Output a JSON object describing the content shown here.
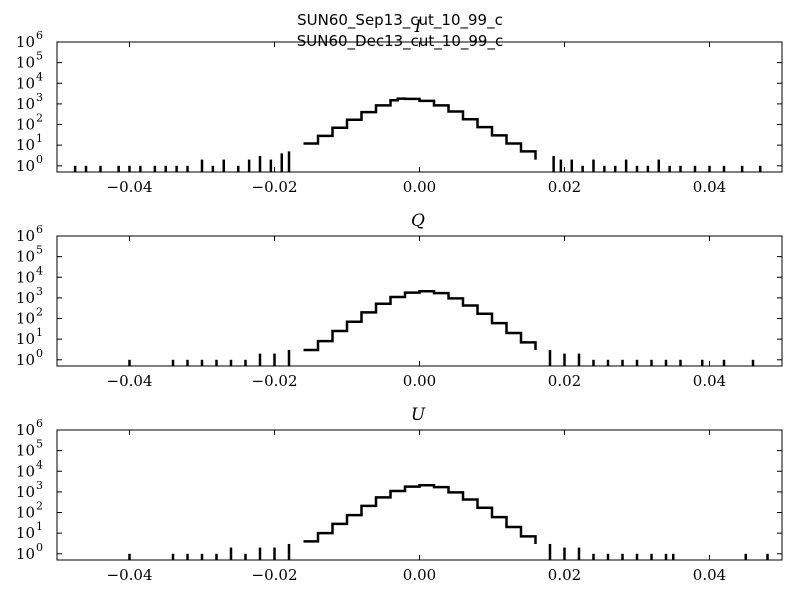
{
  "figure": {
    "title_lines": [
      "SUN60_Sep13_cut_10_99_c",
      "SUN60_Dec13_cut_10_99_c"
    ]
  },
  "chart_data": [
    {
      "type": "line",
      "title": "I",
      "xlabel": "",
      "ylabel": "",
      "xlim": [
        -0.05,
        0.05
      ],
      "ylim": [
        0.5,
        1000000
      ],
      "yscale": "log",
      "grid": false,
      "x_ticks": [
        -0.04,
        -0.02,
        0.0,
        0.02,
        0.04
      ],
      "x_tick_labels": [
        "−0.04",
        "−0.02",
        "0.00",
        "0.02",
        "0.04"
      ],
      "y_ticks": [
        1,
        10,
        100,
        1000,
        10000,
        100000,
        1000000
      ],
      "y_tick_labels": [
        {
          "base": "10",
          "exp": "0"
        },
        {
          "base": "10",
          "exp": "1"
        },
        {
          "base": "10",
          "exp": "2"
        },
        {
          "base": "10",
          "exp": "3"
        },
        {
          "base": "10",
          "exp": "4"
        },
        {
          "base": "10",
          "exp": "5"
        },
        {
          "base": "10",
          "exp": "6"
        }
      ],
      "series": [
        {
          "style": "step",
          "x": [
            -0.016,
            -0.014,
            -0.012,
            -0.01,
            -0.008,
            -0.006,
            -0.004,
            -0.003,
            -0.002,
            0.0,
            0.002,
            0.004,
            0.006,
            0.008,
            0.01,
            0.012,
            0.014,
            0.016
          ],
          "y": [
            12,
            28,
            70,
            170,
            400,
            850,
            1500,
            1800,
            1750,
            1400,
            850,
            430,
            180,
            75,
            30,
            12,
            5,
            2
          ],
          "sparse_tail_x": [
            -0.0475,
            -0.046,
            -0.044,
            -0.0415,
            -0.04,
            -0.0385,
            -0.0365,
            -0.035,
            -0.0335,
            -0.032,
            -0.03,
            -0.0285,
            -0.027,
            -0.025,
            -0.0235,
            -0.022,
            -0.0205,
            -0.019,
            -0.018,
            0.0185,
            0.0195,
            0.021,
            0.0225,
            0.024,
            0.0255,
            0.027,
            0.0285,
            0.03,
            0.0315,
            0.033,
            0.0345,
            0.036,
            0.038,
            0.04,
            0.042,
            0.0445,
            0.047
          ],
          "sparse_tail_y": [
            1,
            1,
            1,
            1,
            1,
            1,
            1,
            1,
            1,
            1,
            2,
            1,
            2,
            1,
            2,
            3,
            2,
            4,
            5,
            3,
            2,
            2,
            1,
            2,
            1,
            1,
            2,
            1,
            1,
            2,
            1,
            1,
            1,
            1,
            1,
            1,
            1
          ]
        }
      ]
    },
    {
      "type": "line",
      "title": "Q",
      "xlabel": "",
      "ylabel": "",
      "xlim": [
        -0.05,
        0.05
      ],
      "ylim": [
        0.5,
        1000000
      ],
      "yscale": "log",
      "grid": false,
      "x_ticks": [
        -0.04,
        -0.02,
        0.0,
        0.02,
        0.04
      ],
      "x_tick_labels": [
        "−0.04",
        "−0.02",
        "0.00",
        "0.02",
        "0.04"
      ],
      "y_ticks": [
        1,
        10,
        100,
        1000,
        10000,
        100000,
        1000000
      ],
      "y_tick_labels": [
        {
          "base": "10",
          "exp": "0"
        },
        {
          "base": "10",
          "exp": "1"
        },
        {
          "base": "10",
          "exp": "2"
        },
        {
          "base": "10",
          "exp": "3"
        },
        {
          "base": "10",
          "exp": "4"
        },
        {
          "base": "10",
          "exp": "5"
        },
        {
          "base": "10",
          "exp": "6"
        }
      ],
      "series": [
        {
          "style": "step",
          "x": [
            -0.016,
            -0.014,
            -0.012,
            -0.01,
            -0.008,
            -0.006,
            -0.004,
            -0.002,
            0.0,
            0.002,
            0.004,
            0.006,
            0.008,
            0.01,
            0.012,
            0.014,
            0.016
          ],
          "y": [
            3,
            8,
            25,
            70,
            200,
            520,
            1100,
            1800,
            2100,
            1700,
            950,
            430,
            170,
            60,
            20,
            7,
            3
          ],
          "sparse_tail_x": [
            -0.04,
            -0.034,
            -0.032,
            -0.03,
            -0.028,
            -0.026,
            -0.024,
            -0.022,
            -0.02,
            -0.018,
            0.018,
            0.02,
            0.022,
            0.024,
            0.026,
            0.028,
            0.03,
            0.032,
            0.034,
            0.036,
            0.039,
            0.042,
            0.046
          ],
          "sparse_tail_y": [
            1,
            1,
            1,
            1,
            1,
            1,
            1,
            2,
            2,
            3,
            3,
            2,
            2,
            1,
            1,
            1,
            1,
            1,
            1,
            1,
            1,
            1,
            1
          ]
        }
      ]
    },
    {
      "type": "line",
      "title": "U",
      "xlabel": "",
      "ylabel": "",
      "xlim": [
        -0.05,
        0.05
      ],
      "ylim": [
        0.5,
        1000000
      ],
      "yscale": "log",
      "grid": false,
      "x_ticks": [
        -0.04,
        -0.02,
        0.0,
        0.02,
        0.04
      ],
      "x_tick_labels": [
        "−0.04",
        "−0.02",
        "0.00",
        "0.02",
        "0.04"
      ],
      "y_ticks": [
        1,
        10,
        100,
        1000,
        10000,
        100000,
        1000000
      ],
      "y_tick_labels": [
        {
          "base": "10",
          "exp": "0"
        },
        {
          "base": "10",
          "exp": "1"
        },
        {
          "base": "10",
          "exp": "2"
        },
        {
          "base": "10",
          "exp": "3"
        },
        {
          "base": "10",
          "exp": "4"
        },
        {
          "base": "10",
          "exp": "5"
        },
        {
          "base": "10",
          "exp": "6"
        }
      ],
      "series": [
        {
          "style": "step",
          "x": [
            -0.016,
            -0.014,
            -0.012,
            -0.01,
            -0.008,
            -0.006,
            -0.004,
            -0.002,
            0.0,
            0.002,
            0.004,
            0.006,
            0.008,
            0.01,
            0.012,
            0.014,
            0.016
          ],
          "y": [
            4,
            10,
            28,
            75,
            210,
            540,
            1100,
            1800,
            2100,
            1700,
            950,
            430,
            170,
            60,
            20,
            7,
            3
          ],
          "sparse_tail_x": [
            -0.04,
            -0.034,
            -0.032,
            -0.03,
            -0.028,
            -0.026,
            -0.024,
            -0.022,
            -0.02,
            -0.018,
            0.018,
            0.02,
            0.022,
            0.024,
            0.026,
            0.028,
            0.03,
            0.032,
            0.034,
            0.035,
            0.045,
            0.048
          ],
          "sparse_tail_y": [
            1,
            1,
            1,
            1,
            1,
            2,
            1,
            2,
            2,
            3,
            3,
            2,
            2,
            1,
            1,
            1,
            1,
            1,
            1,
            1,
            1,
            1
          ]
        }
      ]
    }
  ]
}
